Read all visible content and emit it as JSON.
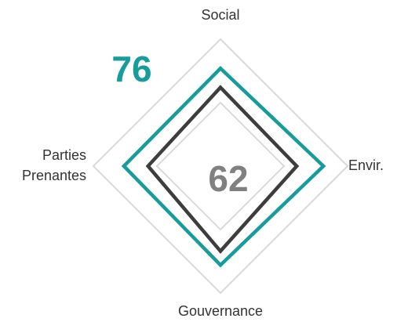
{
  "chart_data": {
    "type": "radar",
    "categories": [
      "Social",
      "Envir.",
      "Gouvernance",
      "Parties Prenantes"
    ],
    "series": [
      {
        "color": "#179c9c",
        "values": [
          77,
          81,
          78,
          76
        ],
        "score": 76
      },
      {
        "color": "#3d3d3d",
        "values": [
          62,
          60,
          67,
          57
        ],
        "score": 62
      }
    ],
    "rlim": [
      0,
      100
    ],
    "rticks": [
      50,
      100
    ],
    "grid": true,
    "grid_color": "#d9d9d9"
  }
}
